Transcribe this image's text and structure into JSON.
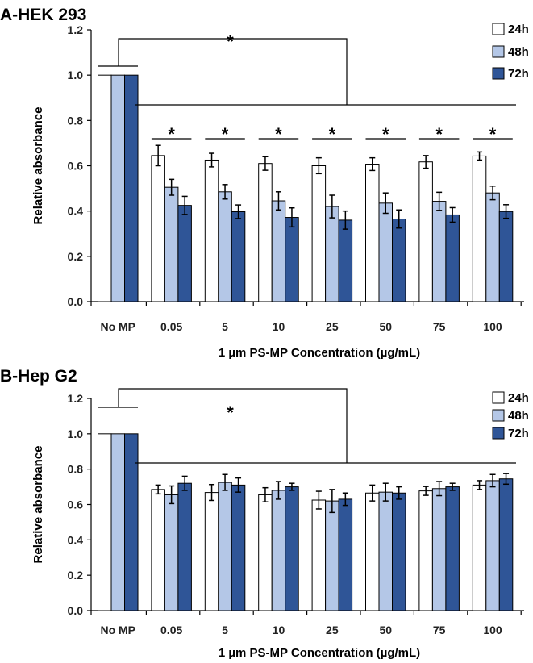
{
  "colors": {
    "s24": "#ffffff",
    "s48": "#b4c7e7",
    "s72": "#2f5597",
    "outline": "#000000"
  },
  "chart_data": [
    {
      "panel_title": "A-HEK 293",
      "type": "bar",
      "categories": [
        "No MP",
        "0.05",
        "5",
        "10",
        "25",
        "50",
        "75",
        "100"
      ],
      "series": [
        {
          "name": "24h",
          "values": [
            1.0,
            0.645,
            0.625,
            0.61,
            0.6,
            0.607,
            0.617,
            0.643
          ],
          "errors": [
            0,
            0.045,
            0.03,
            0.03,
            0.035,
            0.028,
            0.028,
            0.018
          ]
        },
        {
          "name": "48h",
          "values": [
            1.0,
            0.505,
            0.485,
            0.445,
            0.42,
            0.435,
            0.443,
            0.48
          ],
          "errors": [
            0,
            0.035,
            0.032,
            0.04,
            0.05,
            0.045,
            0.04,
            0.03
          ]
        },
        {
          "name": "72h",
          "values": [
            1.0,
            0.425,
            0.397,
            0.372,
            0.36,
            0.365,
            0.383,
            0.398
          ],
          "errors": [
            0,
            0.04,
            0.03,
            0.042,
            0.04,
            0.04,
            0.032,
            0.03
          ]
        }
      ],
      "ylim": [
        0,
        1.2
      ],
      "yticks": [
        "0.0",
        "0.2",
        "0.4",
        "0.6",
        "0.8",
        "1.0",
        "1.2"
      ],
      "ylabel": "Relative absorbance",
      "xlabel": "1 µm PS-MP Concentration (µg/mL)",
      "legend": [
        "24h",
        "48h",
        "72h"
      ],
      "annotations": {
        "overall": "*",
        "pairwise": [
          "*",
          "*",
          "*",
          "*",
          "*",
          "*",
          "*"
        ]
      }
    },
    {
      "panel_title": "B-Hep G2",
      "type": "bar",
      "categories": [
        "No MP",
        "0.05",
        "5",
        "10",
        "25",
        "50",
        "75",
        "100"
      ],
      "series": [
        {
          "name": "24h",
          "values": [
            1.0,
            0.685,
            0.668,
            0.655,
            0.625,
            0.665,
            0.677,
            0.71
          ],
          "errors": [
            0,
            0.025,
            0.045,
            0.04,
            0.05,
            0.045,
            0.025,
            0.025
          ]
        },
        {
          "name": "48h",
          "values": [
            1.0,
            0.655,
            0.725,
            0.68,
            0.62,
            0.67,
            0.69,
            0.735
          ],
          "errors": [
            0,
            0.05,
            0.045,
            0.05,
            0.065,
            0.05,
            0.04,
            0.035
          ]
        },
        {
          "name": "72h",
          "values": [
            1.0,
            0.72,
            0.71,
            0.7,
            0.63,
            0.665,
            0.7,
            0.745
          ],
          "errors": [
            0,
            0.04,
            0.04,
            0.02,
            0.035,
            0.035,
            0.02,
            0.03
          ]
        }
      ],
      "ylim": [
        0,
        1.2
      ],
      "yticks": [
        "0.0",
        "0.2",
        "0.4",
        "0.6",
        "0.8",
        "1.0",
        "1.2"
      ],
      "ylabel": "Relative absorbance",
      "xlabel": "1 µm PS-MP Concentration (µg/mL)",
      "legend": [
        "24h",
        "48h",
        "72h"
      ],
      "annotations": {
        "overall": "*"
      }
    }
  ]
}
